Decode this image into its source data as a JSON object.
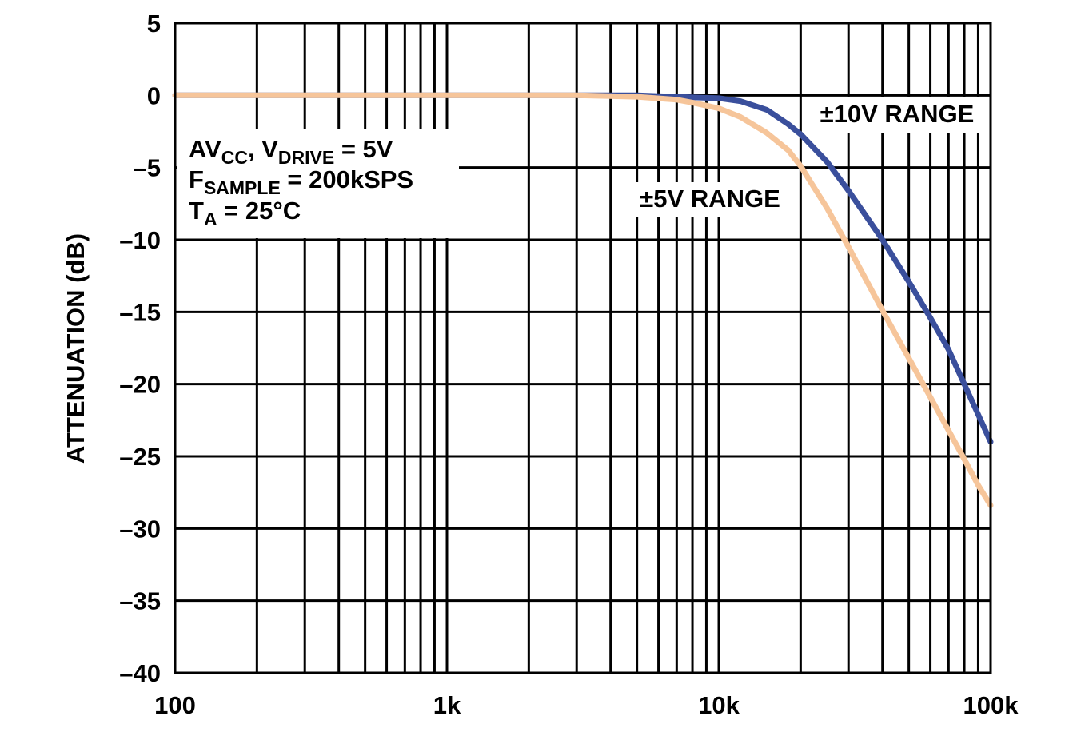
{
  "chart_data": {
    "type": "line",
    "title": "",
    "xlabel": "",
    "ylabel": "ATTENUATION (dB)",
    "xscale": "log",
    "xlim": [
      100,
      100000
    ],
    "ylim": [
      -40,
      5
    ],
    "grid": true,
    "x_ticks": [
      {
        "value": 100,
        "label": "100"
      },
      {
        "value": 1000,
        "label": "1k"
      },
      {
        "value": 10000,
        "label": "10k"
      },
      {
        "value": 100000,
        "label": "100k"
      }
    ],
    "y_ticks": [
      {
        "value": 5,
        "label": "5"
      },
      {
        "value": 0,
        "label": "0"
      },
      {
        "value": -5,
        "label": "–5"
      },
      {
        "value": -10,
        "label": "–10"
      },
      {
        "value": -15,
        "label": "–15"
      },
      {
        "value": -20,
        "label": "–20"
      },
      {
        "value": -25,
        "label": "–25"
      },
      {
        "value": -30,
        "label": "–30"
      },
      {
        "value": -35,
        "label": "–35"
      },
      {
        "value": -40,
        "label": "–40"
      }
    ],
    "series": [
      {
        "name": "±10V RANGE",
        "color": "#3a4f9c",
        "x": [
          100,
          1000,
          3000,
          5000,
          7000,
          10000,
          12000,
          15000,
          18000,
          20000,
          25000,
          30000,
          40000,
          50000,
          60000,
          70000,
          80000,
          90000,
          100000
        ],
        "y": [
          0,
          0,
          0,
          0,
          -0.1,
          -0.2,
          -0.4,
          -1.0,
          -2.0,
          -2.7,
          -4.6,
          -6.6,
          -10.0,
          -12.9,
          -15.4,
          -17.6,
          -20.0,
          -22.1,
          -24.0
        ]
      },
      {
        "name": "±5V RANGE",
        "color": "#f6c59a",
        "x": [
          100,
          1000,
          3000,
          5000,
          7000,
          8000,
          10000,
          12000,
          15000,
          18000,
          20000,
          25000,
          30000,
          40000,
          50000,
          60000,
          70000,
          80000,
          90000,
          100000
        ],
        "y": [
          0,
          0,
          0,
          -0.1,
          -0.3,
          -0.5,
          -0.9,
          -1.5,
          -2.6,
          -3.8,
          -4.9,
          -7.8,
          -10.5,
          -14.9,
          -18.2,
          -20.9,
          -23.2,
          -25.2,
          -27.0,
          -28.4
        ]
      }
    ],
    "annotations": [
      {
        "id": "conditions-line-1",
        "parts": [
          {
            "text": "AV",
            "sub": false
          },
          {
            "text": "CC",
            "sub": true
          },
          {
            "text": ", V",
            "sub": false
          },
          {
            "text": "DRIVE",
            "sub": true
          },
          {
            "text": " = 5V",
            "sub": false
          }
        ]
      },
      {
        "id": "conditions-line-2",
        "parts": [
          {
            "text": "F",
            "sub": false
          },
          {
            "text": "SAMPLE",
            "sub": true
          },
          {
            "text": " = 200kSPS",
            "sub": false
          }
        ]
      },
      {
        "id": "conditions-line-3",
        "parts": [
          {
            "text": "T",
            "sub": false
          },
          {
            "text": "A",
            "sub": true
          },
          {
            "text": " = 25°C",
            "sub": false
          }
        ]
      }
    ],
    "series_labels": [
      {
        "series": "±10V RANGE",
        "text": "±10V RANGE"
      },
      {
        "series": "±5V RANGE",
        "text": "±5V RANGE"
      }
    ]
  }
}
